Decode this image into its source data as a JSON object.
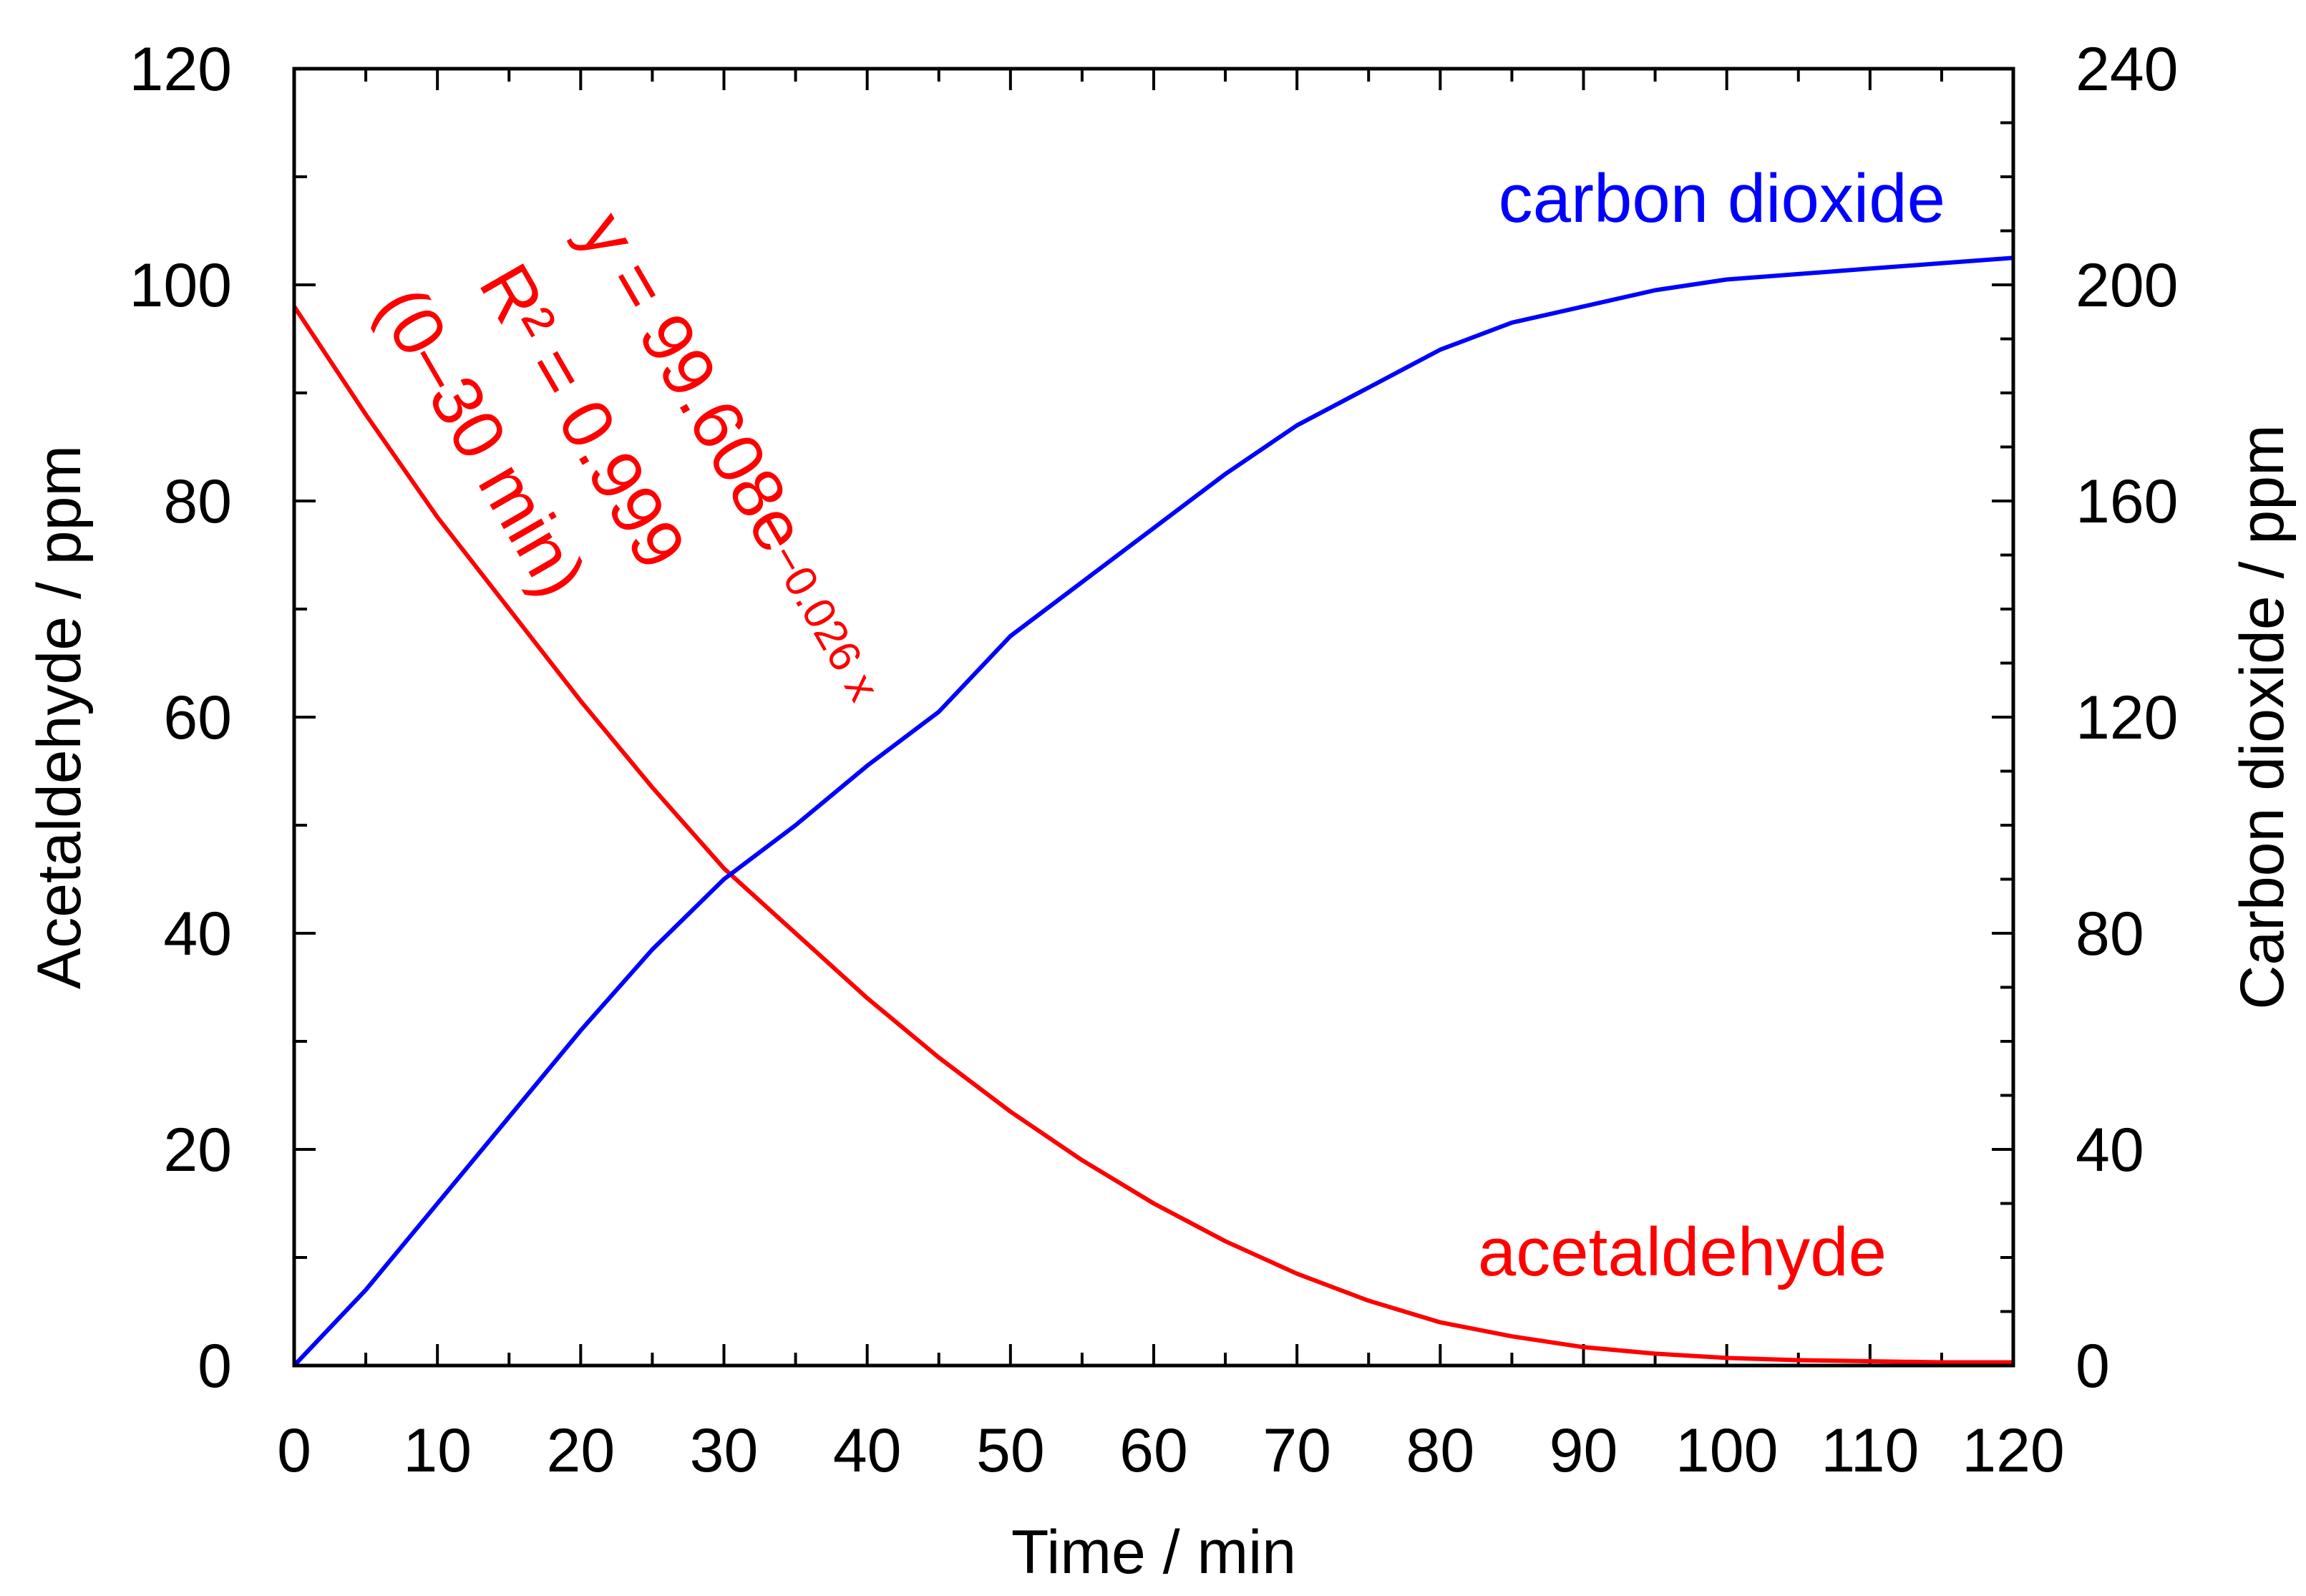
{
  "chart_data": {
    "type": "line",
    "title": "",
    "xlabel": "Time / min",
    "ylabel": "Acetaldehyde / ppm",
    "y2label": "Carbon dioxide / ppm",
    "xlim": [
      0,
      120
    ],
    "ylim": [
      0,
      120
    ],
    "y2lim": [
      0,
      240
    ],
    "x_ticks": [
      "0",
      "10",
      "20",
      "30",
      "40",
      "50",
      "60",
      "70",
      "80",
      "90",
      "100",
      "110",
      "120"
    ],
    "y_ticks": [
      "0",
      "20",
      "40",
      "60",
      "80",
      "100",
      "120"
    ],
    "y2_ticks": [
      "0",
      "40",
      "80",
      "120",
      "160",
      "200",
      "240"
    ],
    "grid": false,
    "series": [
      {
        "name": "acetaldehyde",
        "axis": "left",
        "color": "#ff0000",
        "x": [
          0,
          5,
          10,
          15,
          20,
          25,
          30,
          35,
          40,
          45,
          50,
          55,
          60,
          65,
          70,
          75,
          80,
          85,
          90,
          95,
          100,
          105,
          110,
          115,
          120
        ],
        "y": [
          98,
          88,
          78.5,
          70,
          61.5,
          53.5,
          46,
          40,
          34,
          28.5,
          23.5,
          19,
          15,
          11.5,
          8.5,
          6,
          4,
          2.7,
          1.7,
          1.1,
          0.7,
          0.5,
          0.4,
          0.3,
          0.3
        ]
      },
      {
        "name": "carbon dioxide",
        "axis": "right",
        "color": "#0000ff",
        "x": [
          0,
          5,
          10,
          15,
          20,
          25,
          30,
          35,
          40,
          45,
          50,
          55,
          60,
          65,
          70,
          75,
          80,
          85,
          90,
          95,
          100,
          105,
          110,
          115,
          120
        ],
        "y": [
          0,
          14,
          30,
          46,
          62,
          77,
          90,
          100,
          111,
          121,
          135,
          145,
          155,
          165,
          174,
          181,
          188,
          193,
          196,
          199,
          201,
          202,
          203,
          204,
          205
        ]
      }
    ],
    "annotations": {
      "equation_prefix": "y = 99.608e",
      "equation_exponent": "−0.026 x",
      "r_squared": "R² = 0.999",
      "fit_range": "(0–30 min)",
      "color": "#ff0000"
    }
  }
}
